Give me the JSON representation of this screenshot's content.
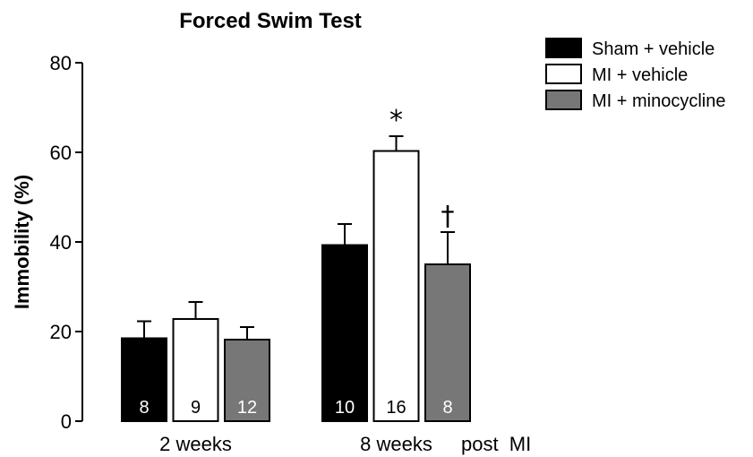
{
  "chart_data": {
    "type": "bar",
    "title": "Forced Swim Test",
    "ylabel": "Immobility (%)",
    "xlabel": "post  MI",
    "ylim": [
      0,
      80
    ],
    "yticks": [
      0,
      20,
      40,
      60,
      80
    ],
    "categories": [
      "2 weeks",
      "8 weeks"
    ],
    "series": [
      {
        "name": "Sham + vehicle",
        "color": "#000000",
        "values": [
          18.5,
          39.3
        ],
        "errors": [
          3.8,
          4.7
        ],
        "n": [
          "8",
          "10"
        ],
        "n_color": "#ffffff"
      },
      {
        "name": "MI + vehicle",
        "color": "#ffffff",
        "values": [
          22.8,
          60.3
        ],
        "errors": [
          3.8,
          3.3
        ],
        "n": [
          "9",
          "16"
        ],
        "n_color": "#000000"
      },
      {
        "name": "MI + minocycline",
        "color": "#777777",
        "values": [
          18.2,
          35.0
        ],
        "errors": [
          2.8,
          7.2
        ],
        "n": [
          "12",
          "8"
        ],
        "n_color": "#ffffff"
      }
    ],
    "annotations": [
      {
        "symbol": "*",
        "series": 1,
        "category": 1
      },
      {
        "symbol": "†",
        "series": 2,
        "category": 1
      }
    ],
    "legend_position": "top-right",
    "grid": false
  }
}
